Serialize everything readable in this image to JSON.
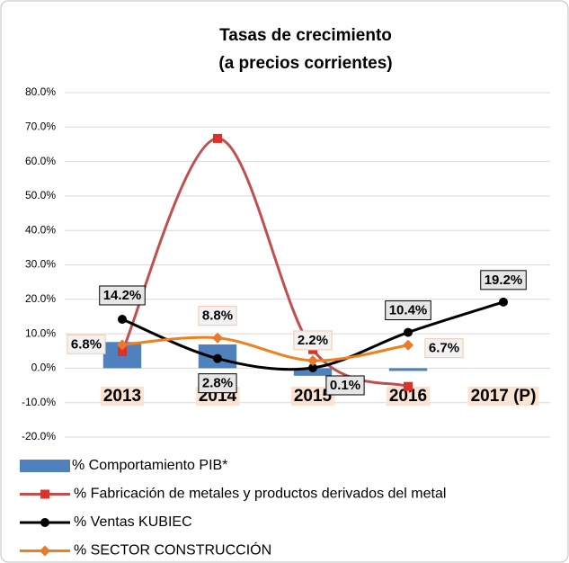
{
  "chart_data": {
    "type": "combo",
    "title": "Tasas de crecimiento",
    "subtitle": "(a precios corrientes)",
    "categories": [
      "2013",
      "2014",
      "2015",
      "2016",
      "2017 (P)"
    ],
    "ylim": [
      -20,
      80
    ],
    "yticks": [
      {
        "value": -20,
        "label": "-20.0%"
      },
      {
        "value": -10,
        "label": "-10.0%"
      },
      {
        "value": 0,
        "label": "0.0%"
      },
      {
        "value": 10,
        "label": "10.0%"
      },
      {
        "value": 20,
        "label": "20.0%"
      },
      {
        "value": 30,
        "label": "30.0%"
      },
      {
        "value": 40,
        "label": "40.0%"
      },
      {
        "value": 50,
        "label": "50.0%"
      },
      {
        "value": 60,
        "label": "60.0%"
      },
      {
        "value": 70,
        "label": "70.0%"
      },
      {
        "value": 80,
        "label": "80.0%"
      }
    ],
    "grid": true,
    "legend": "bottom",
    "series": [
      {
        "name": "% Comportamiento PIB*",
        "type": "bar",
        "color": "#4f81bd",
        "values": [
          7.6,
          6.9,
          -2.2,
          -0.8,
          null
        ]
      },
      {
        "name": "% Fabricación de metales y productos derivados del metal",
        "type": "line",
        "color": "#c0504d",
        "marker": "square",
        "marker_color": "#e0302a",
        "values": [
          4.8,
          66.7,
          5.4,
          -5.3,
          null
        ]
      },
      {
        "name": "% Ventas KUBIEC",
        "type": "line",
        "color": "#000000",
        "marker": "circle",
        "marker_color": "#000000",
        "values": [
          14.2,
          2.8,
          0.1,
          10.4,
          19.2
        ],
        "value_labels": [
          "14.2%",
          "2.8%",
          "0.1%",
          "10.4%",
          "19.2%"
        ]
      },
      {
        "name": "% SECTOR CONSTRUCCIÓN",
        "type": "line",
        "color": "#f07f1c",
        "marker": "diamond",
        "marker_color": "#e87a2a",
        "values": [
          6.8,
          8.8,
          2.2,
          6.7,
          null
        ],
        "value_labels": [
          "6.8%",
          "8.8%",
          "2.2%",
          "6.7%",
          null
        ]
      }
    ]
  }
}
